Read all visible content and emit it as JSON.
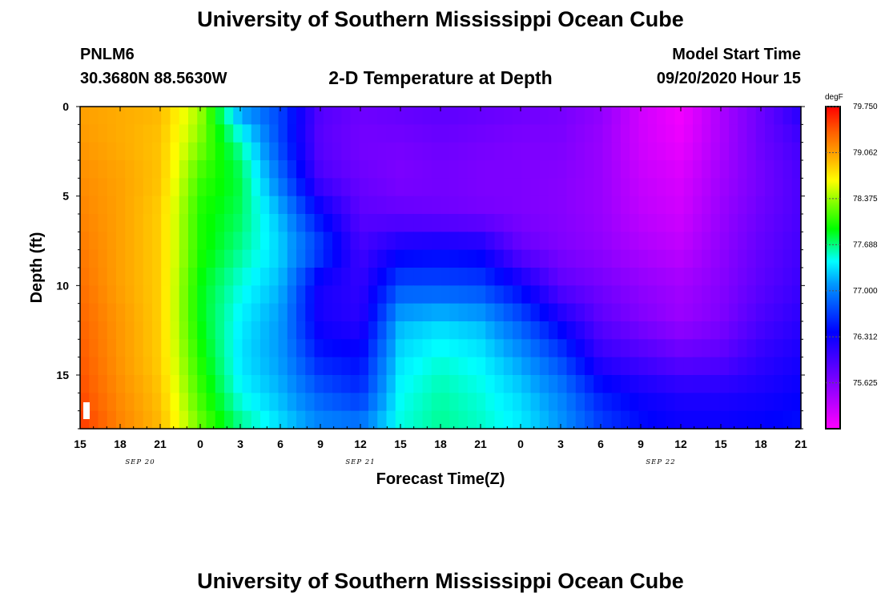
{
  "header": {
    "title_top": "University of Southern Mississippi Ocean Cube",
    "title_bottom": "University of Southern Mississippi Ocean Cube",
    "station_id": "PNLM6",
    "station_coords": "30.3680N 88.5630W",
    "chart_title": "2-D Temperature at Depth",
    "model_start_label": "Model Start Time",
    "model_start_value": "09/20/2020 Hour 15"
  },
  "chart_data": {
    "type": "heatmap",
    "title": "2-D Temperature at Depth",
    "xlabel": "Forecast Time(Z)",
    "ylabel": "Depth (ft)",
    "x_tick_labels": [
      "15",
      "18",
      "21",
      "0",
      "3",
      "6",
      "9",
      "12",
      "15",
      "18",
      "21",
      "0",
      "3",
      "6",
      "9",
      "12",
      "15",
      "18",
      "21"
    ],
    "x_tick_hours": [
      0,
      3,
      6,
      9,
      12,
      15,
      18,
      21,
      24,
      27,
      30,
      33,
      36,
      39,
      42,
      45,
      48,
      51,
      54
    ],
    "date_labels": [
      {
        "text": "SEP 20",
        "hour": 4.5
      },
      {
        "text": "SEP 21",
        "hour": 21
      },
      {
        "text": "SEP 22",
        "hour": 43.5
      }
    ],
    "x_range_hours": [
      0,
      54
    ],
    "y_ticks": [
      0,
      5,
      10,
      15
    ],
    "y_range_ft": [
      0,
      18
    ],
    "colorbar": {
      "unit": "degF",
      "min": 74.94,
      "max": 79.75,
      "labels": [
        "79.750",
        "79.062",
        "78.375",
        "77.688",
        "77.000",
        "76.312",
        "75.625"
      ],
      "label_values": [
        79.75,
        79.062,
        78.375,
        77.688,
        77.0,
        76.312,
        75.625
      ]
    },
    "temperature_grid": {
      "time_hours": [
        0,
        3,
        6,
        9,
        12,
        15,
        18,
        21,
        24,
        27,
        30,
        33,
        36,
        39,
        42,
        45,
        48,
        51,
        54
      ],
      "depth_ft": [
        0,
        2,
        4,
        6,
        8,
        10,
        12,
        14,
        16,
        18
      ],
      "values_by_depth": [
        [
          79.05,
          79.0,
          78.95,
          78.4,
          77.05,
          76.7,
          75.9,
          75.75,
          75.8,
          75.85,
          75.8,
          75.75,
          75.7,
          75.55,
          75.2,
          75.0,
          75.4,
          75.75,
          76.2
        ],
        [
          79.1,
          79.0,
          78.9,
          78.3,
          77.6,
          76.7,
          75.85,
          75.7,
          75.7,
          75.75,
          75.7,
          75.65,
          75.65,
          75.5,
          75.2,
          75.05,
          75.4,
          75.75,
          76.0
        ],
        [
          79.15,
          79.05,
          78.9,
          78.1,
          77.8,
          76.9,
          75.95,
          75.75,
          75.65,
          75.7,
          75.65,
          75.65,
          75.6,
          75.5,
          75.25,
          75.15,
          75.45,
          75.7,
          75.95
        ],
        [
          79.2,
          79.05,
          78.85,
          78.0,
          77.75,
          77.2,
          76.4,
          75.85,
          75.8,
          75.75,
          75.7,
          75.65,
          75.6,
          75.5,
          75.3,
          75.2,
          75.5,
          75.75,
          75.95
        ],
        [
          79.25,
          79.05,
          78.85,
          78.0,
          77.65,
          77.3,
          76.7,
          76.0,
          76.3,
          76.35,
          76.3,
          75.8,
          75.65,
          75.55,
          75.4,
          75.3,
          75.55,
          75.8,
          76.0
        ],
        [
          79.3,
          79.05,
          78.85,
          77.9,
          77.5,
          77.2,
          76.25,
          76.1,
          76.75,
          76.75,
          76.7,
          76.35,
          75.85,
          75.7,
          75.55,
          75.45,
          75.6,
          75.85,
          76.05
        ],
        [
          79.35,
          79.1,
          78.85,
          77.9,
          77.4,
          77.1,
          76.25,
          76.15,
          77.2,
          77.3,
          77.2,
          76.8,
          76.3,
          75.85,
          75.65,
          75.5,
          75.65,
          75.95,
          76.15
        ],
        [
          79.4,
          79.1,
          78.85,
          78.0,
          77.35,
          77.1,
          76.5,
          76.4,
          77.35,
          77.5,
          77.4,
          77.1,
          76.7,
          76.1,
          75.95,
          75.8,
          75.85,
          76.1,
          76.25
        ],
        [
          79.45,
          79.15,
          78.9,
          78.1,
          77.45,
          77.2,
          76.8,
          76.6,
          77.45,
          77.6,
          77.5,
          77.3,
          77.0,
          76.5,
          76.3,
          76.2,
          76.2,
          76.25,
          76.35
        ],
        [
          79.55,
          79.2,
          78.95,
          78.25,
          77.7,
          77.35,
          77.05,
          77.0,
          77.5,
          77.65,
          77.55,
          77.4,
          77.1,
          76.7,
          76.45,
          76.35,
          76.35,
          76.4,
          76.45
        ]
      ]
    }
  }
}
